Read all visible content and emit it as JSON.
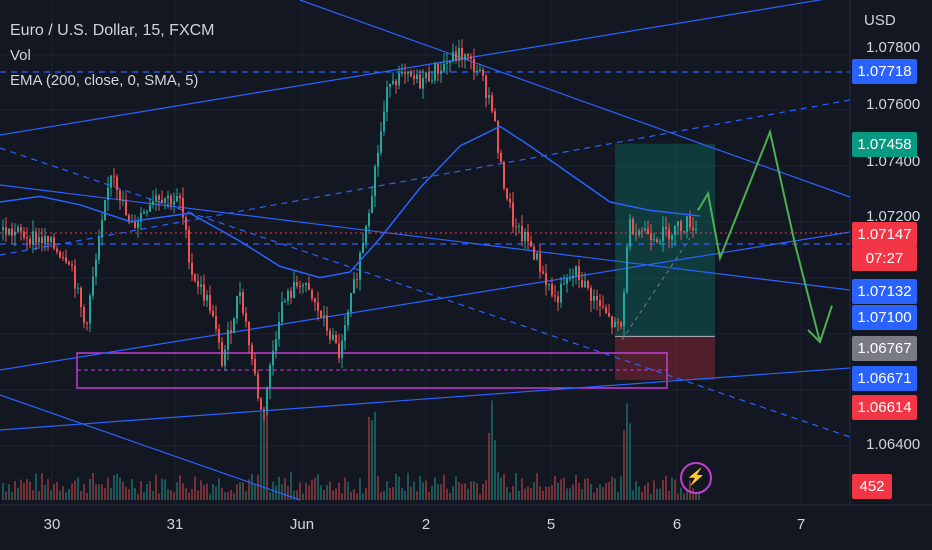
{
  "legend": {
    "title": "Euro / U.S. Dollar, 15, FXCM",
    "vol": "Vol",
    "ema": "EMA (200, close, 0, SMA, 5)"
  },
  "currency": "USD",
  "colors": {
    "background": "#131722",
    "up": "#26a69a",
    "down": "#ef5350",
    "trendline": "#2962ff",
    "ema": "#2962ff",
    "projection": "#4caf50",
    "zone": "#c23fd3"
  },
  "price_tags": [
    {
      "value": "1.07718",
      "color": "#2962ff"
    },
    {
      "value": "1.07458",
      "color": "#089981"
    },
    {
      "value": "1.07147",
      "color": "#f23645",
      "sub": "07:27"
    },
    {
      "value": "1.07132",
      "color": "#2962ff"
    },
    {
      "value": "1.07100",
      "color": "#2962ff"
    },
    {
      "value": "1.06767",
      "color": "#787b86"
    },
    {
      "value": "1.06671",
      "color": "#2962ff"
    },
    {
      "value": "1.06614",
      "color": "#f23645"
    }
  ],
  "volume_tag": {
    "value": "452",
    "color": "#f23645"
  },
  "chart_data": {
    "type": "candlestick",
    "title": "Euro / U.S. Dollar, 15, FXCM",
    "y_unit": "USD",
    "y_ticks": [
      "1.07800",
      "1.07600",
      "1.07400",
      "1.07200",
      "1.06400"
    ],
    "ylim": [
      1.063,
      1.0785
    ],
    "x_ticks": [
      "30",
      "31",
      "Jun",
      "2",
      "5",
      "6",
      "7"
    ],
    "current_price": 1.07147,
    "countdown": "07:27",
    "last_volume": 452,
    "price_path": [
      [
        0,
        1.0715
      ],
      [
        40,
        1.0712
      ],
      [
        70,
        1.0705
      ],
      [
        85,
        1.068
      ],
      [
        100,
        1.0712
      ],
      [
        112,
        1.0738
      ],
      [
        130,
        1.0715
      ],
      [
        155,
        1.0728
      ],
      [
        180,
        1.0725
      ],
      [
        192,
        1.07
      ],
      [
        210,
        1.0688
      ],
      [
        222,
        1.0668
      ],
      [
        240,
        1.0694
      ],
      [
        262,
        1.0648
      ],
      [
        280,
        1.0687
      ],
      [
        300,
        1.0697
      ],
      [
        320,
        1.0685
      ],
      [
        340,
        1.067
      ],
      [
        358,
        1.0702
      ],
      [
        372,
        1.073
      ],
      [
        390,
        1.077
      ],
      [
        420,
        1.0768
      ],
      [
        460,
        1.0778
      ],
      [
        478,
        1.0772
      ],
      [
        492,
        1.076
      ],
      [
        500,
        1.0738
      ],
      [
        515,
        1.0715
      ],
      [
        530,
        1.071
      ],
      [
        555,
        1.069
      ],
      [
        575,
        1.07
      ],
      [
        615,
        1.068
      ],
      [
        622,
        1.068
      ],
      [
        628,
        1.0717
      ],
      [
        660,
        1.0713
      ],
      [
        690,
        1.0718
      ],
      [
        698,
        1.0715
      ]
    ],
    "ema_path": [
      [
        0,
        1.0725
      ],
      [
        40,
        1.0727
      ],
      [
        80,
        1.0724
      ],
      [
        130,
        1.0718
      ],
      [
        190,
        1.0721
      ],
      [
        240,
        1.0711
      ],
      [
        280,
        1.0702
      ],
      [
        320,
        1.0698
      ],
      [
        350,
        1.07
      ],
      [
        380,
        1.0712
      ],
      [
        420,
        1.073
      ],
      [
        460,
        1.0745
      ],
      [
        500,
        1.0752
      ],
      [
        530,
        1.0745
      ],
      [
        570,
        1.0735
      ],
      [
        610,
        1.0725
      ],
      [
        650,
        1.0722
      ],
      [
        700,
        1.072
      ]
    ],
    "volume": "histogram",
    "annotations": {
      "position_entry": 1.0677,
      "position_target": 1.07458,
      "position_stop": 1.06614,
      "demand_zone": [
        1.06614,
        1.06767
      ],
      "projection_path": [
        [
          698,
          1.0722
        ],
        [
          708,
          1.0728
        ],
        [
          720,
          1.0705
        ],
        [
          770,
          1.075
        ],
        [
          795,
          1.071
        ],
        [
          820,
          1.0675
        ],
        [
          832,
          1.0688
        ]
      ]
    }
  }
}
